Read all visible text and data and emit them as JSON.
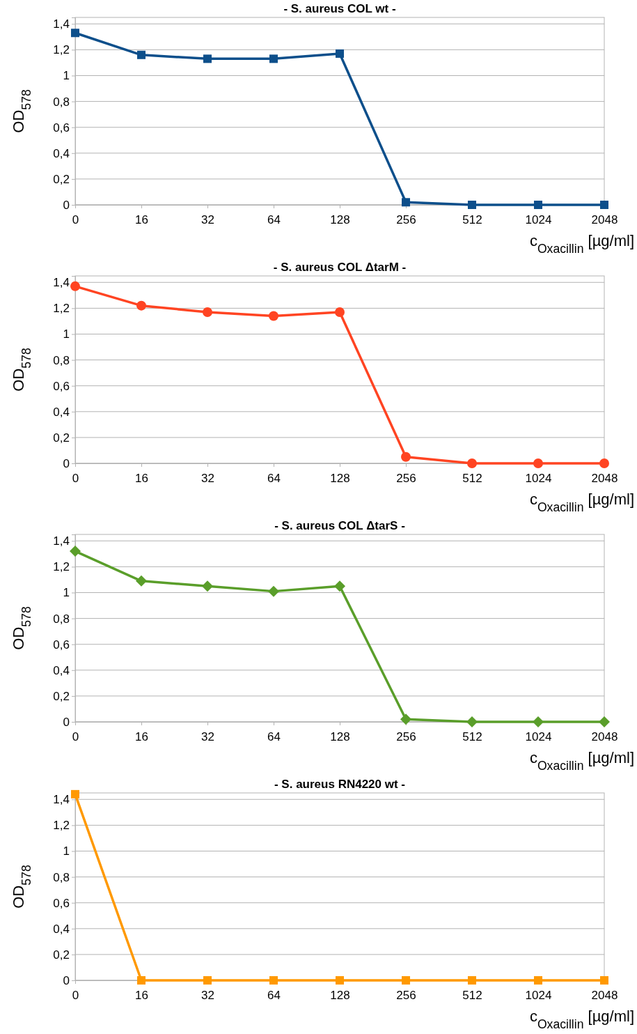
{
  "chart_data": [
    {
      "type": "line",
      "title": "- S. aureus COL wt -",
      "xlabel": "c$_{Oxacillin}$ [µg/ml]",
      "ylabel": "OD$_{578}$",
      "categories": [
        "0",
        "16",
        "32",
        "64",
        "128",
        "256",
        "512",
        "1024",
        "2048"
      ],
      "series": [
        {
          "color": "#0d4f8b",
          "values": [
            1.33,
            1.16,
            1.13,
            1.13,
            1.17,
            0.02,
            0,
            0,
            0
          ]
        }
      ],
      "marker": "square",
      "ylim": [
        0,
        1.45
      ],
      "yticks": [
        {
          "value": 0,
          "label": "0"
        },
        {
          "value": 0.2,
          "label": "0,2"
        },
        {
          "value": 0.4,
          "label": "0,4"
        },
        {
          "value": 0.6,
          "label": "0,6"
        },
        {
          "value": 0.8,
          "label": "0,8"
        },
        {
          "value": 1,
          "label": "1"
        },
        {
          "value": 1.2,
          "label": "1,2"
        },
        {
          "value": 1.4,
          "label": "1,4"
        }
      ],
      "grid": true
    },
    {
      "type": "line",
      "title": "- S. aureus COL ΔtarM -",
      "xlabel": "c$_{Oxacillin}$ [µg/ml]",
      "ylabel": "OD$_{578}$",
      "categories": [
        "0",
        "16",
        "32",
        "64",
        "128",
        "256",
        "512",
        "1024",
        "2048"
      ],
      "series": [
        {
          "color": "#ff4422",
          "values": [
            1.37,
            1.22,
            1.17,
            1.14,
            1.17,
            0.05,
            0,
            0,
            0
          ]
        }
      ],
      "marker": "circle",
      "ylim": [
        0,
        1.45
      ],
      "yticks": [
        {
          "value": 0,
          "label": "0"
        },
        {
          "value": 0.2,
          "label": "0,2"
        },
        {
          "value": 0.4,
          "label": "0,4"
        },
        {
          "value": 0.6,
          "label": "0,6"
        },
        {
          "value": 0.8,
          "label": "0,8"
        },
        {
          "value": 1,
          "label": "1"
        },
        {
          "value": 1.2,
          "label": "1,2"
        },
        {
          "value": 1.4,
          "label": "1,4"
        }
      ],
      "grid": true
    },
    {
      "type": "line",
      "title": "- S. aureus COL ΔtarS -",
      "xlabel": "c$_{Oxacillin}$ [µg/ml]",
      "ylabel": "OD$_{578}$",
      "categories": [
        "0",
        "16",
        "32",
        "64",
        "128",
        "256",
        "512",
        "1024",
        "2048"
      ],
      "series": [
        {
          "color": "#5a9e2a",
          "values": [
            1.32,
            1.09,
            1.05,
            1.01,
            1.05,
            0.02,
            0,
            0,
            0
          ]
        }
      ],
      "marker": "diamond",
      "ylim": [
        0,
        1.45
      ],
      "yticks": [
        {
          "value": 0,
          "label": "0"
        },
        {
          "value": 0.2,
          "label": "0,2"
        },
        {
          "value": 0.4,
          "label": "0,4"
        },
        {
          "value": 0.6,
          "label": "0,6"
        },
        {
          "value": 0.8,
          "label": "0,8"
        },
        {
          "value": 1,
          "label": "1"
        },
        {
          "value": 1.2,
          "label": "1,2"
        },
        {
          "value": 1.4,
          "label": "1,4"
        }
      ],
      "grid": true
    },
    {
      "type": "line",
      "title": "- S. aureus RN4220 wt -",
      "xlabel": "c$_{Oxacillin}$ [µg/ml]",
      "ylabel": "OD$_{578}$",
      "categories": [
        "0",
        "16",
        "32",
        "64",
        "128",
        "256",
        "512",
        "1024",
        "2048"
      ],
      "series": [
        {
          "color": "#ff9900",
          "values": [
            1.44,
            0,
            0,
            0,
            0,
            0,
            0,
            0,
            0
          ]
        }
      ],
      "marker": "square",
      "ylim": [
        0,
        1.45
      ],
      "yticks": [
        {
          "value": 0,
          "label": "0"
        },
        {
          "value": 0.2,
          "label": "0,2"
        },
        {
          "value": 0.4,
          "label": "0,4"
        },
        {
          "value": 0.6,
          "label": "0,6"
        },
        {
          "value": 0.8,
          "label": "0,8"
        },
        {
          "value": 1,
          "label": "1"
        },
        {
          "value": 1.2,
          "label": "1,2"
        },
        {
          "value": 1.4,
          "label": "1,4"
        }
      ],
      "grid": true
    }
  ]
}
